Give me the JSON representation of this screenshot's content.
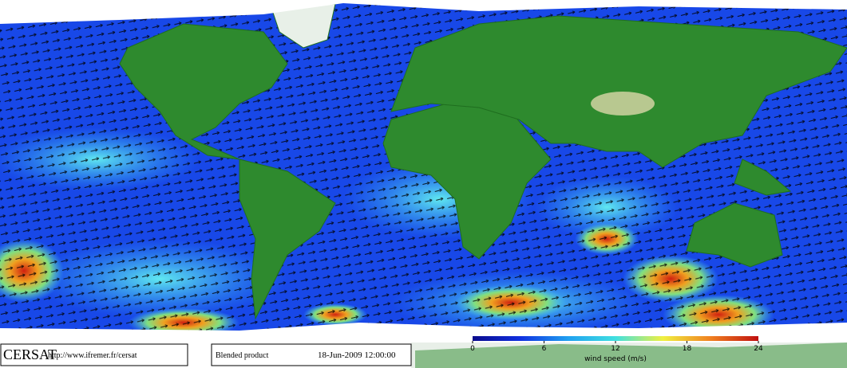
{
  "footer": {
    "logo": "CERSAT",
    "url": "http://www.ifremer.fr/cersat",
    "product": "Blended product",
    "date": "18-Jun-2009 12:00:00"
  },
  "colorbar": {
    "label": "wind speed (m/s)",
    "lim": [
      0,
      24
    ],
    "ticks": [
      0,
      6,
      12,
      18,
      24
    ],
    "colors": [
      "#0a0a8c",
      "#1030e0",
      "#20a0f0",
      "#40e0e0",
      "#f0f040",
      "#f08020",
      "#c01010"
    ]
  }
}
